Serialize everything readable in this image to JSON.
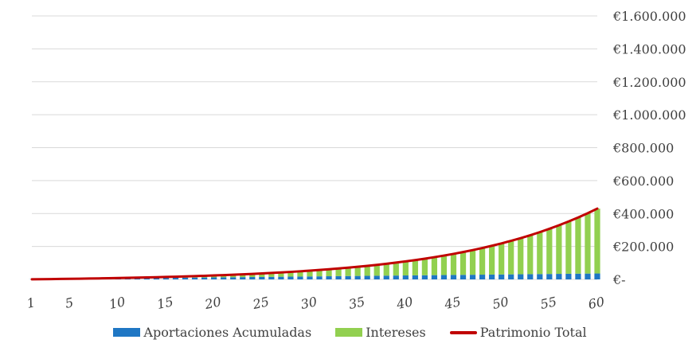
{
  "chart_data": {
    "type": "bar",
    "title": "",
    "xlabel": "",
    "ylabel": "",
    "x": [
      1,
      2,
      3,
      4,
      5,
      6,
      7,
      8,
      9,
      10,
      11,
      12,
      13,
      14,
      15,
      16,
      17,
      18,
      19,
      20,
      21,
      22,
      23,
      24,
      25,
      26,
      27,
      28,
      29,
      30,
      31,
      32,
      33,
      34,
      35,
      36,
      37,
      38,
      39,
      40,
      41,
      42,
      43,
      44,
      45,
      46,
      47,
      48,
      49,
      50,
      51,
      52,
      53,
      54,
      55,
      56,
      57,
      58,
      59,
      60
    ],
    "x_tick_labels": [
      "1",
      "5",
      "10",
      "15",
      "20",
      "25",
      "30",
      "35",
      "40",
      "45",
      "50",
      "55",
      "60"
    ],
    "y_tick_labels": [
      "€-",
      "€200.000",
      "€400.000",
      "€600.000",
      "€800.000",
      "€1.000.000",
      "€1.200.000",
      "€1.400.000",
      "€1.600.000"
    ],
    "ylim": [
      0,
      1600000
    ],
    "grid": true,
    "legend_position": "bottom",
    "stacked": true,
    "series": [
      {
        "name": "Aportaciones Acumuladas",
        "type": "bar",
        "color": "#1f77c4",
        "values": [
          600,
          1200,
          1800,
          2400,
          3000,
          3600,
          4200,
          4800,
          5400,
          6000,
          6600,
          7200,
          7800,
          8400,
          9000,
          9600,
          10200,
          10800,
          11400,
          12000,
          12600,
          13200,
          13800,
          14400,
          15000,
          15600,
          16200,
          16800,
          17400,
          18000,
          18600,
          19200,
          19800,
          20400,
          21000,
          21600,
          22200,
          22800,
          23400,
          24000,
          24600,
          25200,
          25800,
          26400,
          27000,
          27600,
          28200,
          28800,
          29400,
          30000,
          30600,
          31200,
          31800,
          32400,
          33000,
          33600,
          34200,
          34800,
          35400,
          36000
        ]
      },
      {
        "name": "Intereses",
        "type": "bar",
        "color": "#92d050",
        "values": [
          36,
          110,
          224,
          380,
          582,
          834,
          1138,
          1498,
          1917,
          2402,
          2953,
          3578,
          4280,
          5065,
          5939,
          6907,
          7977,
          9155,
          10448,
          11865,
          13415,
          15107,
          16951,
          18957,
          21137,
          23503,
          26068,
          28846,
          31852,
          35101,
          38611,
          42399,
          46485,
          50890,
          55636,
          60747,
          66249,
          72170,
          78538,
          85385,
          92744,
          100650,
          109140,
          118255,
          128037,
          138531,
          149785,
          161851,
          174784,
          188642,
          203486,
          219383,
          236402,
          254617,
          274107,
          294957,
          317256,
          341098,
          366585,
          393822
        ]
      },
      {
        "name": "Patrimonio Total",
        "type": "line",
        "color": "#c00000",
        "values": [
          636,
          1310,
          2024,
          2780,
          3582,
          4434,
          5338,
          6298,
          7317,
          8402,
          9553,
          10778,
          12080,
          13465,
          14939,
          16507,
          18177,
          19955,
          21848,
          23865,
          26015,
          28307,
          30751,
          33357,
          36137,
          39103,
          42268,
          45646,
          49252,
          53101,
          57211,
          61599,
          66285,
          71290,
          76636,
          82347,
          88449,
          94970,
          101938,
          109385,
          117344,
          125850,
          134940,
          144655,
          155037,
          166131,
          177985,
          190651,
          204184,
          218642,
          234086,
          250583,
          268202,
          287017,
          307107,
          328557,
          351456,
          375898,
          401985,
          429822
        ]
      }
    ]
  }
}
